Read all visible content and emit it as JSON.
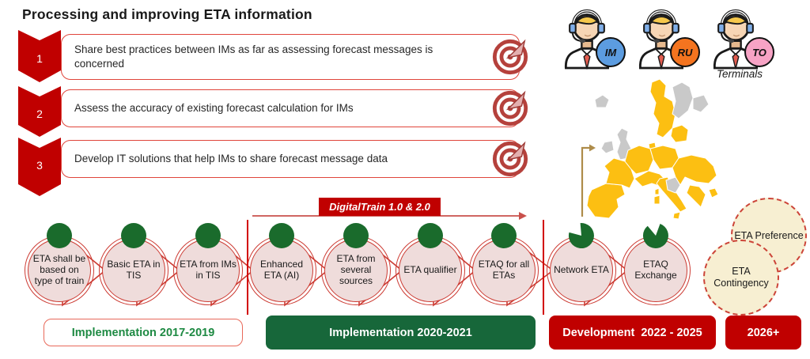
{
  "title": "Processing and improving ETA information",
  "steps": [
    {
      "number": "1",
      "text": "Share best practices between IMs as far as assessing forecast messages is concerned",
      "icon": "target-icon"
    },
    {
      "number": "2",
      "text": "Assess the accuracy of existing forecast calculation for IMs",
      "icon": "target-icon"
    },
    {
      "number": "3",
      "text": "Develop IT solutions that help IMs to share forecast message data",
      "icon": "target-icon"
    }
  ],
  "actors": [
    {
      "badge": "IM",
      "badge_color": "#5c9ce0",
      "icon": "support-agent-icon",
      "caption": ""
    },
    {
      "badge": "RU",
      "badge_color": "#f4741f",
      "icon": "support-agent-icon",
      "caption": ""
    },
    {
      "badge": "TO",
      "badge_color": "#f7a3c5",
      "icon": "support-agent-icon",
      "caption": "Terminals"
    }
  ],
  "map": {
    "name": "europe-map",
    "yellow": "#fcbf12",
    "gray": "#c9c9c9"
  },
  "banner": {
    "label": "DigitalTrain 1.0 & 2.0",
    "color": "#c00000"
  },
  "timeline": {
    "nodes": [
      {
        "label": "ETA shall be based on type of train",
        "marker": "full"
      },
      {
        "label": "Basic ETA in TIS",
        "marker": "full"
      },
      {
        "label": "ETA from IMs in TIS",
        "marker": "full"
      },
      {
        "label": "Enhanced ETA (AI)",
        "marker": "full"
      },
      {
        "label": "ETA from several sources",
        "marker": "full"
      },
      {
        "label": "ETA qualifier",
        "marker": "full"
      },
      {
        "label": "ETAQ for all ETAs",
        "marker": "full"
      },
      {
        "label": "Network ETA",
        "marker": "pac-left"
      },
      {
        "label": "ETAQ Exchange",
        "marker": "pac-top"
      }
    ],
    "marker_color": "#1a6b2c",
    "circle_fill": "#efdcdb",
    "ring_color": "#cc3b33"
  },
  "extras": [
    {
      "label": "ETA Preference"
    },
    {
      "label": "ETA Contingency"
    }
  ],
  "phases": [
    {
      "label": "Implementation 2017-2019",
      "style": "outline"
    },
    {
      "label": "Implementation 2020-2021",
      "style": "green"
    },
    {
      "label": "Development  2022 - 2025",
      "style": "red"
    },
    {
      "label": "2026+",
      "style": "red"
    }
  ],
  "colors": {
    "accent_red": "#c00000",
    "box_border": "#e0453b",
    "green_dark": "#17673a",
    "green_text": "#1e8a43",
    "cream": "#f7efd2",
    "tan_arrow": "#ae8c4a"
  }
}
